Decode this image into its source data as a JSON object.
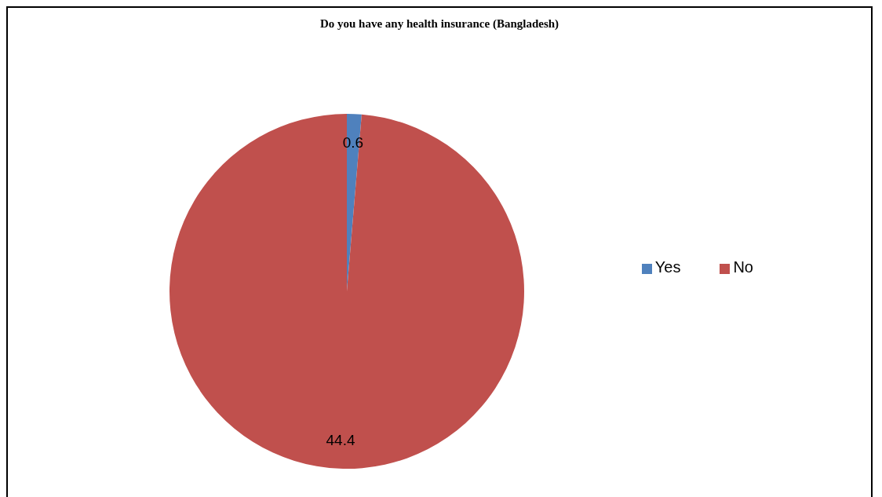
{
  "chart_data": {
    "type": "pie",
    "title": "Do you have any health insurance (Bangladesh)",
    "categories": [
      "Yes",
      "No"
    ],
    "values": [
      0.6,
      44.4
    ],
    "colors": [
      "#4f81bd",
      "#c0504d"
    ],
    "data_labels": true,
    "legend": "right"
  }
}
